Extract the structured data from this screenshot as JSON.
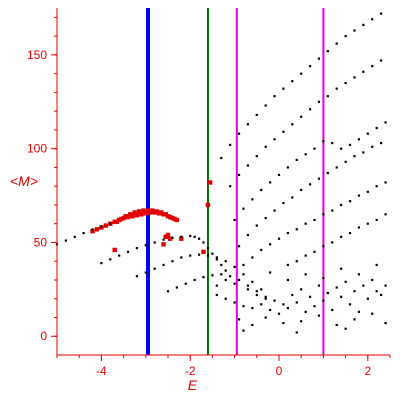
{
  "chart_data": {
    "type": "scatter",
    "title": "",
    "xlabel": "E",
    "ylabel": "<M>",
    "xlim": [
      -5.0,
      2.5
    ],
    "ylim": [
      -10,
      175
    ],
    "xticks": [
      -4,
      -2,
      0,
      2
    ],
    "yticks": [
      0,
      50,
      100,
      150
    ],
    "grid": false,
    "legend": "none",
    "colors": {
      "axis": "#e00000",
      "black_points": "#000000",
      "red_points": "#e00000",
      "blue_line": "#0000ff",
      "green_line": "#007000",
      "magenta_line": "#e000e0"
    },
    "vertical_lines": [
      {
        "x": -2.95,
        "color": "#0000ff",
        "width": 4
      },
      {
        "x": -1.6,
        "color": "#007000",
        "width": 2
      },
      {
        "x": -0.95,
        "color": "#e000e0",
        "width": 2
      },
      {
        "x": 1.0,
        "color": "#e000e0",
        "width": 2
      }
    ],
    "series": [
      {
        "color": "#e00000",
        "points": [
          [
            -4.2,
            56
          ],
          [
            -4.1,
            57
          ],
          [
            -4.0,
            58
          ],
          [
            -3.9,
            59
          ],
          [
            -3.8,
            60
          ],
          [
            -3.7,
            61
          ],
          [
            -3.6,
            62
          ],
          [
            -3.5,
            63
          ],
          [
            -3.4,
            63.5
          ],
          [
            -3.3,
            64
          ],
          [
            -3.2,
            64.5
          ],
          [
            -3.1,
            65
          ],
          [
            -3.0,
            65.5
          ],
          [
            -2.9,
            66
          ],
          [
            -2.8,
            66
          ],
          [
            -2.7,
            65.5
          ],
          [
            -2.6,
            65
          ],
          [
            -2.5,
            64
          ],
          [
            -2.4,
            63
          ],
          [
            -2.3,
            62
          ],
          [
            -3.65,
            61
          ],
          [
            -3.55,
            62.5
          ],
          [
            -3.45,
            64
          ],
          [
            -3.35,
            65
          ],
          [
            -3.25,
            66
          ],
          [
            -3.15,
            66.5
          ],
          [
            -3.05,
            67
          ],
          [
            -2.95,
            67
          ],
          [
            -2.85,
            67
          ],
          [
            -2.75,
            66.5
          ],
          [
            -2.65,
            66
          ],
          [
            -2.55,
            65
          ],
          [
            -2.45,
            63.5
          ],
          [
            -2.35,
            62.5
          ],
          [
            -3.7,
            46
          ],
          [
            -2.6,
            49
          ],
          [
            -2.55,
            53
          ],
          [
            -2.5,
            54
          ],
          [
            -2.45,
            52
          ],
          [
            -2.2,
            52
          ],
          [
            -1.7,
            45
          ],
          [
            -1.6,
            70
          ],
          [
            -1.55,
            82
          ]
        ]
      },
      {
        "color": "#000000",
        "points": [
          [
            -5.0,
            49
          ],
          [
            -4.8,
            51
          ],
          [
            -4.6,
            53
          ],
          [
            -4.4,
            55
          ],
          [
            -4.2,
            57
          ],
          [
            -4.0,
            58.5
          ],
          [
            -3.8,
            60
          ],
          [
            -4.0,
            39
          ],
          [
            -3.8,
            41
          ],
          [
            -3.6,
            43
          ],
          [
            -3.4,
            45
          ],
          [
            -3.2,
            47
          ],
          [
            -3.0,
            48.5
          ],
          [
            -2.8,
            50
          ],
          [
            -2.6,
            51.5
          ],
          [
            -2.4,
            52.5
          ],
          [
            -2.2,
            53
          ],
          [
            -2.0,
            53.5
          ],
          [
            -1.9,
            53
          ],
          [
            -1.8,
            52
          ],
          [
            -1.7,
            50
          ],
          [
            -1.6,
            47
          ],
          [
            -1.5,
            44
          ],
          [
            -1.4,
            41
          ],
          [
            -1.3,
            38
          ],
          [
            -1.2,
            35
          ],
          [
            -3.2,
            32
          ],
          [
            -3.0,
            34
          ],
          [
            -2.8,
            36
          ],
          [
            -2.6,
            38
          ],
          [
            -2.4,
            40
          ],
          [
            -2.2,
            42
          ],
          [
            -2.0,
            43
          ],
          [
            -1.8,
            43.5
          ],
          [
            -1.6,
            43
          ],
          [
            -1.4,
            42
          ],
          [
            -1.2,
            40
          ],
          [
            -1.0,
            37
          ],
          [
            -0.8,
            33
          ],
          [
            -0.6,
            29
          ],
          [
            -0.4,
            25
          ],
          [
            -2.5,
            24
          ],
          [
            -2.3,
            26
          ],
          [
            -2.1,
            28
          ],
          [
            -1.9,
            30
          ],
          [
            -1.7,
            31.5
          ],
          [
            -1.5,
            32.5
          ],
          [
            -1.3,
            33
          ],
          [
            -1.1,
            32
          ],
          [
            -0.9,
            30
          ],
          [
            -0.7,
            27
          ],
          [
            -0.5,
            24
          ],
          [
            -0.3,
            21
          ],
          [
            -0.1,
            19
          ],
          [
            0.1,
            17
          ],
          [
            -1.3,
            95
          ],
          [
            -1.1,
            102
          ],
          [
            -0.9,
            108
          ],
          [
            -0.7,
            113
          ],
          [
            -0.5,
            118
          ],
          [
            -0.3,
            123
          ],
          [
            -0.1,
            128
          ],
          [
            0.1,
            132
          ],
          [
            0.3,
            136
          ],
          [
            0.5,
            140
          ],
          [
            0.7,
            144
          ],
          [
            0.9,
            148
          ],
          [
            1.1,
            152
          ],
          [
            1.3,
            156
          ],
          [
            1.5,
            160
          ],
          [
            1.7,
            163
          ],
          [
            1.9,
            166
          ],
          [
            2.1,
            169
          ],
          [
            2.3,
            172
          ],
          [
            -1.1,
            80
          ],
          [
            -0.9,
            86
          ],
          [
            -0.7,
            91
          ],
          [
            -0.5,
            96
          ],
          [
            -0.3,
            101
          ],
          [
            -0.1,
            105
          ],
          [
            0.1,
            109
          ],
          [
            0.3,
            113
          ],
          [
            0.5,
            117
          ],
          [
            0.7,
            121
          ],
          [
            0.9,
            125
          ],
          [
            1.1,
            128
          ],
          [
            1.3,
            132
          ],
          [
            1.5,
            135
          ],
          [
            1.7,
            138
          ],
          [
            1.9,
            141
          ],
          [
            2.1,
            144
          ],
          [
            2.3,
            147
          ],
          [
            -1.0,
            62
          ],
          [
            -0.8,
            68
          ],
          [
            -0.6,
            73
          ],
          [
            -0.4,
            78
          ],
          [
            -0.2,
            82
          ],
          [
            0.0,
            86
          ],
          [
            0.2,
            90
          ],
          [
            0.4,
            94
          ],
          [
            0.6,
            97
          ],
          [
            0.8,
            100
          ],
          [
            1.0,
            104
          ],
          [
            1.2,
            103
          ],
          [
            1.4,
            100
          ],
          [
            1.6,
            102
          ],
          [
            1.8,
            105
          ],
          [
            2.0,
            108
          ],
          [
            2.2,
            111
          ],
          [
            2.4,
            114
          ],
          [
            -0.9,
            48
          ],
          [
            -0.7,
            54
          ],
          [
            -0.5,
            59
          ],
          [
            -0.3,
            63
          ],
          [
            -0.1,
            67
          ],
          [
            0.1,
            71
          ],
          [
            0.3,
            74
          ],
          [
            0.5,
            78
          ],
          [
            0.7,
            81
          ],
          [
            0.9,
            84
          ],
          [
            1.1,
            87
          ],
          [
            1.3,
            90
          ],
          [
            1.5,
            93
          ],
          [
            1.7,
            96
          ],
          [
            1.9,
            98
          ],
          [
            2.1,
            101
          ],
          [
            2.3,
            103
          ],
          [
            -0.8,
            38
          ],
          [
            -0.6,
            42
          ],
          [
            -0.4,
            46
          ],
          [
            -0.2,
            49
          ],
          [
            0.0,
            52
          ],
          [
            0.2,
            55
          ],
          [
            0.4,
            57
          ],
          [
            0.6,
            60
          ],
          [
            0.8,
            62
          ],
          [
            1.0,
            65
          ],
          [
            1.2,
            67
          ],
          [
            1.4,
            70
          ],
          [
            1.6,
            72
          ],
          [
            1.8,
            75
          ],
          [
            2.0,
            77
          ],
          [
            2.2,
            80
          ],
          [
            2.4,
            82
          ],
          [
            0.2,
            38
          ],
          [
            0.4,
            40
          ],
          [
            0.6,
            43
          ],
          [
            0.8,
            45
          ],
          [
            1.0,
            48
          ],
          [
            1.2,
            50
          ],
          [
            1.4,
            53
          ],
          [
            1.6,
            55
          ],
          [
            1.8,
            58
          ],
          [
            2.0,
            60
          ],
          [
            2.2,
            62
          ],
          [
            2.4,
            65
          ],
          [
            -1.4,
            22
          ],
          [
            -1.2,
            20
          ],
          [
            -1.0,
            18
          ],
          [
            -0.8,
            16
          ],
          [
            -0.6,
            15
          ],
          [
            -0.4,
            17
          ],
          [
            -0.2,
            14
          ],
          [
            0.0,
            12
          ],
          [
            0.2,
            15
          ],
          [
            0.4,
            18
          ],
          [
            0.6,
            13
          ],
          [
            0.8,
            16
          ],
          [
            1.0,
            19
          ],
          [
            1.2,
            14
          ],
          [
            1.4,
            21
          ],
          [
            1.6,
            17
          ],
          [
            1.8,
            13
          ],
          [
            2.0,
            20
          ],
          [
            2.2,
            24
          ],
          [
            2.4,
            27
          ],
          [
            -1.0,
            28
          ],
          [
            -0.7,
            25
          ],
          [
            -0.5,
            22
          ],
          [
            -0.3,
            20
          ],
          [
            0.3,
            22
          ],
          [
            0.5,
            25
          ],
          [
            0.7,
            21
          ],
          [
            0.9,
            27
          ],
          [
            1.1,
            23
          ],
          [
            1.3,
            26
          ],
          [
            1.5,
            29
          ],
          [
            1.7,
            24
          ],
          [
            1.9,
            27
          ],
          [
            2.1,
            30
          ],
          [
            2.3,
            22
          ],
          [
            -0.9,
            9
          ],
          [
            -0.6,
            6
          ],
          [
            -0.3,
            10
          ],
          [
            0.1,
            7
          ],
          [
            0.5,
            8
          ],
          [
            0.9,
            11
          ],
          [
            1.3,
            6
          ],
          [
            1.7,
            9
          ],
          [
            2.1,
            12
          ],
          [
            2.4,
            7
          ],
          [
            -0.8,
            3
          ],
          [
            0.4,
            2
          ],
          [
            1.5,
            4
          ],
          [
            -1.2,
            30
          ],
          [
            -1.4,
            27
          ],
          [
            -0.2,
            34
          ],
          [
            0.2,
            30
          ],
          [
            0.6,
            33
          ],
          [
            1.0,
            31
          ],
          [
            1.4,
            36
          ],
          [
            1.8,
            33
          ],
          [
            2.2,
            38
          ]
        ]
      }
    ]
  }
}
